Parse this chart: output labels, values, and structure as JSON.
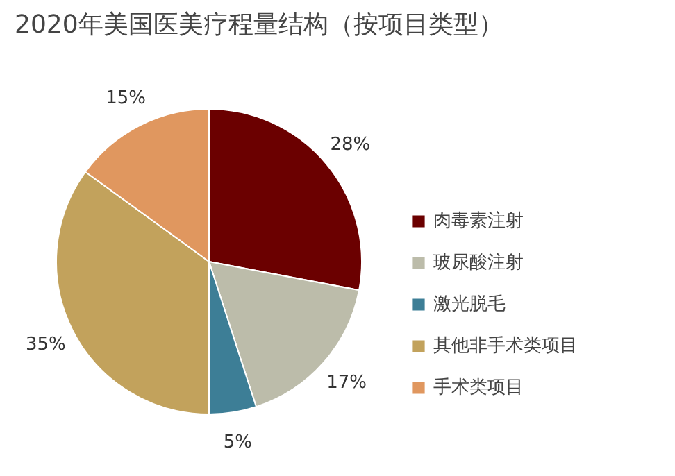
{
  "chart_data": {
    "type": "pie",
    "title": "2020年美国医美疗程量结构（按项目类型）",
    "categories": [
      "肉毒素注射",
      "玻尿酸注射",
      "激光脱毛",
      "其他非手术类项目",
      "手术类项目"
    ],
    "values": [
      28,
      17,
      5,
      35,
      15
    ],
    "colors": [
      "#6b0000",
      "#bcbcaa",
      "#3d7e96",
      "#c2a25c",
      "#e0975f"
    ],
    "value_labels": [
      "28%",
      "17%",
      "5%",
      "35%",
      "15%"
    ],
    "legend": "right"
  }
}
